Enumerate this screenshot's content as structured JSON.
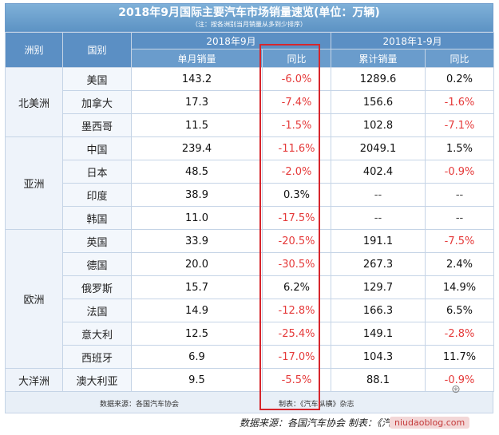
{
  "title": "2018年9月国际主要汽车市场销量速览(单位：万辆)",
  "subtitle": "（注：按各洲别当月销量从多到少排序）",
  "headers": {
    "continent": "洲别",
    "country": "国别",
    "group_month": "2018年9月",
    "group_ytd": "2018年1-9月",
    "monthly_sales": "单月销量",
    "yoy_month": "同比",
    "cumulative": "累计销量",
    "yoy_ytd": "同比"
  },
  "continents": [
    "北美洲",
    "亚洲",
    "欧洲",
    "大洋洲"
  ],
  "rows": [
    {
      "country": "美国",
      "monthly": "143.2",
      "yoy": "-6.0%",
      "cumulative": "1289.6",
      "yoy_ytd": "0.2%"
    },
    {
      "country": "加拿大",
      "monthly": "17.3",
      "yoy": "-7.4%",
      "cumulative": "156.6",
      "yoy_ytd": "-1.6%"
    },
    {
      "country": "墨西哥",
      "monthly": "11.5",
      "yoy": "-1.5%",
      "cumulative": "102.8",
      "yoy_ytd": "-7.1%"
    },
    {
      "country": "中国",
      "monthly": "239.4",
      "yoy": "-11.6%",
      "cumulative": "2049.1",
      "yoy_ytd": "1.5%"
    },
    {
      "country": "日本",
      "monthly": "48.5",
      "yoy": "-2.0%",
      "cumulative": "402.4",
      "yoy_ytd": "-0.9%"
    },
    {
      "country": "印度",
      "monthly": "38.9",
      "yoy": "0.3%",
      "cumulative": "--",
      "yoy_ytd": "--"
    },
    {
      "country": "韩国",
      "monthly": "11.0",
      "yoy": "-17.5%",
      "cumulative": "--",
      "yoy_ytd": "--"
    },
    {
      "country": "英国",
      "monthly": "33.9",
      "yoy": "-20.5%",
      "cumulative": "191.1",
      "yoy_ytd": "-7.5%"
    },
    {
      "country": "德国",
      "monthly": "20.0",
      "yoy": "-30.5%",
      "cumulative": "267.3",
      "yoy_ytd": "2.4%"
    },
    {
      "country": "俄罗斯",
      "monthly": "15.7",
      "yoy": "6.2%",
      "cumulative": "129.7",
      "yoy_ytd": "14.9%"
    },
    {
      "country": "法国",
      "monthly": "14.9",
      "yoy": "-12.8%",
      "cumulative": "166.3",
      "yoy_ytd": "6.5%"
    },
    {
      "country": "意大利",
      "monthly": "12.5",
      "yoy": "-25.4%",
      "cumulative": "149.1",
      "yoy_ytd": "-2.8%"
    },
    {
      "country": "西班牙",
      "monthly": "6.9",
      "yoy": "-17.0%",
      "cumulative": "104.3",
      "yoy_ytd": "11.7%"
    },
    {
      "country": "澳大利亚",
      "monthly": "9.5",
      "yoy": "-5.5%",
      "cumulative": "88.1",
      "yoy_ytd": "-0.9%"
    }
  ],
  "footer": {
    "source": "数据来源：各国汽车协会",
    "maker": "制表：《汽车纵横》杂志"
  },
  "caption": "数据来源：各国汽车协会    制表：《汽车纵横》杂志",
  "watermark": "niudaoblog.com",
  "colors": {
    "negative": "#e53a3a",
    "header": "#5b8fc4",
    "highlight_box": "#d6262c"
  }
}
